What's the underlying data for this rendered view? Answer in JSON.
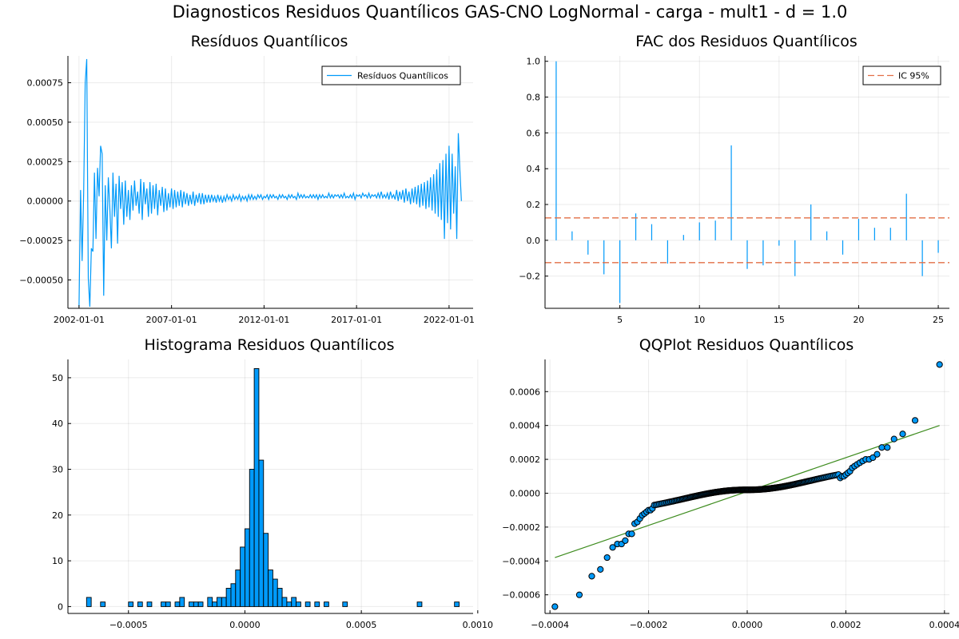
{
  "figure": {
    "suptitle": "Diagnosticos Residuos  Quantílicos GAS-CNO LogNormal - carga - mult1 - d = 1.0"
  },
  "colors": {
    "series": "#009AFA",
    "ci": "#E26F46",
    "qqline": "#3E8C1F",
    "marker_edge": "#000000"
  },
  "chart_data": [
    {
      "id": "residuals",
      "type": "line",
      "title": "Resíduos  Quantílicos",
      "legend": [
        "Resíduos Quantílicos"
      ],
      "legend_position": "top-right",
      "grid": true,
      "x_tick_labels": [
        "2002-01-01",
        "2007-01-01",
        "2012-01-01",
        "2017-01-01",
        "2022-01-01"
      ],
      "x_ticks_year": [
        2002,
        2007,
        2012,
        2017,
        2022
      ],
      "xlim_year": [
        2001.4,
        2023.3
      ],
      "y_ticks": [
        -0.0005,
        -0.00025,
        0.0,
        0.00025,
        0.0005,
        0.00075
      ],
      "y_tick_labels": [
        "−0.00050",
        "−0.00025",
        "0.00000",
        "0.00025",
        "0.00050",
        "0.00075"
      ],
      "ylim": [
        -0.00068,
        0.00092
      ],
      "series": [
        {
          "name": "Resíduos Quantílicos",
          "x_start_year": 2002.0,
          "x_step_year": 0.083333,
          "values": [
            -0.00067,
            7e-05,
            -0.00038,
            5e-05,
            0.00075,
            0.0009,
            -0.00049,
            -0.00067,
            -0.0003,
            -0.00032,
            0.00018,
            -0.00024,
            0.00021,
            3e-05,
            0.00035,
            0.0003,
            -0.0006,
            0.0001,
            -0.00025,
            0.00015,
            -5e-05,
            -0.0003,
            0.00018,
            -0.0001,
            0.00011,
            -0.00027,
            0.00016,
            -5e-05,
            0.00012,
            -0.00015,
            0.00013,
            -0.0001,
            7e-05,
            -0.00012,
            0.0001,
            -6e-05,
            0.00013,
            -3e-05,
            6e-05,
            -8e-05,
            0.00014,
            -0.00012,
            0.00012,
            -2e-05,
            8e-05,
            -0.0001,
            0.00012,
            -8e-05,
            0.0001,
            -5e-05,
            0.00011,
            -9e-05,
            7e-05,
            -3e-05,
            9e-05,
            -7e-05,
            8e-05,
            -6e-05,
            5e-05,
            -4e-05,
            8e-05,
            -5e-05,
            7e-05,
            -4e-05,
            6e-05,
            -3e-05,
            7e-05,
            -4e-05,
            6e-05,
            -2e-05,
            5e-05,
            -3e-05,
            4e-05,
            -2e-05,
            6e-05,
            -3e-05,
            4e-05,
            -1e-05,
            5e-05,
            -2e-05,
            5e-05,
            -2e-05,
            4e-05,
            -1e-05,
            4e-05,
            -1e-05,
            4e-05,
            0.0,
            3e-05,
            -1e-05,
            4e-05,
            0.0,
            3e-05,
            -1e-05,
            3e-05,
            0.0,
            4e-05,
            1e-05,
            3e-05,
            0.0,
            4e-05,
            1e-05,
            3e-05,
            1e-05,
            4e-05,
            0.0,
            3e-05,
            1e-05,
            3e-05,
            0.0,
            4e-05,
            1e-05,
            4e-05,
            1e-05,
            3e-05,
            1e-05,
            4e-05,
            2e-05,
            4e-05,
            1e-05,
            3e-05,
            2e-05,
            4e-05,
            1e-05,
            4e-05,
            2e-05,
            4e-05,
            2e-05,
            3e-05,
            1e-05,
            4e-05,
            2e-05,
            4e-05,
            2e-05,
            3e-05,
            1e-05,
            4e-05,
            2e-05,
            4e-05,
            2e-05,
            3e-05,
            1e-05,
            5e-05,
            2e-05,
            4e-05,
            2e-05,
            4e-05,
            2e-05,
            3e-05,
            2e-05,
            4e-05,
            2e-05,
            4e-05,
            2e-05,
            4e-05,
            1e-05,
            4e-05,
            2e-05,
            4e-05,
            2e-05,
            3e-05,
            2e-05,
            5e-05,
            2e-05,
            4e-05,
            2e-05,
            4e-05,
            3e-05,
            4e-05,
            2e-05,
            4e-05,
            2e-05,
            5e-05,
            2e-05,
            3e-05,
            2e-05,
            4e-05,
            2e-05,
            5e-05,
            1e-05,
            4e-05,
            3e-05,
            4e-05,
            2e-05,
            5e-05,
            3e-05,
            4e-05,
            2e-05,
            5e-05,
            2e-05,
            4e-05,
            3e-05,
            4e-05,
            2e-05,
            5e-05,
            2e-05,
            6e-05,
            2e-05,
            4e-05,
            2e-05,
            5e-05,
            1e-05,
            6e-05,
            2e-05,
            4e-05,
            1e-05,
            7e-05,
            0.0,
            6e-05,
            1e-05,
            7e-05,
            -1e-05,
            8e-05,
            0.0,
            6e-05,
            -2e-05,
            8e-05,
            -1e-05,
            9e-05,
            -2e-05,
            0.0001,
            -4e-05,
            0.00011,
            -3e-05,
            0.00012,
            -5e-05,
            0.00013,
            -4e-05,
            0.00015,
            -6e-05,
            0.00017,
            -8e-05,
            0.0002,
            -0.0001,
            0.00024,
            -0.00012,
            0.00026,
            -0.00024,
            0.0003,
            -0.00014,
            0.00035,
            -0.00018,
            0.0003,
            -8e-05,
            0.00022,
            -0.00024,
            0.00043,
            0.0002,
            0.0
          ]
        }
      ]
    },
    {
      "id": "acf",
      "type": "bar",
      "title": "FAC dos Residuos Quantílicos",
      "legend": [
        "IC 95%"
      ],
      "legend_position": "top-right",
      "grid": true,
      "lags": [
        1,
        2,
        3,
        4,
        5,
        6,
        7,
        8,
        9,
        10,
        11,
        12,
        13,
        14,
        15,
        16,
        17,
        18,
        19,
        20,
        21,
        22,
        23,
        24,
        25
      ],
      "values": [
        1.0,
        0.05,
        -0.08,
        -0.19,
        -0.35,
        0.15,
        0.09,
        -0.13,
        0.03,
        0.1,
        0.11,
        0.53,
        -0.16,
        -0.14,
        -0.03,
        -0.2,
        0.2,
        0.05,
        -0.08,
        0.12,
        0.07,
        0.07,
        0.26,
        -0.2,
        -0.07
      ],
      "ci": [
        0.125,
        -0.125
      ],
      "x_ticks": [
        5,
        10,
        15,
        20,
        25
      ],
      "x_tick_labels": [
        "5",
        "10",
        "15",
        "20",
        "25"
      ],
      "xlim": [
        0.3,
        25.7
      ],
      "y_ticks": [
        -0.2,
        0.0,
        0.2,
        0.4,
        0.6,
        0.8,
        1.0
      ],
      "y_tick_labels": [
        "−0.2",
        "0.0",
        "0.2",
        "0.4",
        "0.6",
        "0.8",
        "1.0"
      ],
      "ylim": [
        -0.38,
        1.03
      ]
    },
    {
      "id": "histogram",
      "type": "bar",
      "title": "Histograma Residuos Quantílicos",
      "grid": true,
      "bin_width": 2e-05,
      "bins": [
        [
          -0.00068,
          2
        ],
        [
          -0.00062,
          1
        ],
        [
          -0.0005,
          1
        ],
        [
          -0.00046,
          1
        ],
        [
          -0.00042,
          1
        ],
        [
          -0.00036,
          1
        ],
        [
          -0.00034,
          1
        ],
        [
          -0.0003,
          1
        ],
        [
          -0.00028,
          2
        ],
        [
          -0.00024,
          1
        ],
        [
          -0.00022,
          1
        ],
        [
          -0.0002,
          1
        ],
        [
          -0.00016,
          2
        ],
        [
          -0.00014,
          1
        ],
        [
          -0.00012,
          2
        ],
        [
          -0.0001,
          2
        ],
        [
          -8e-05,
          4
        ],
        [
          -6e-05,
          5
        ],
        [
          -4e-05,
          8
        ],
        [
          -2e-05,
          13
        ],
        [
          0.0,
          17
        ],
        [
          2e-05,
          30
        ],
        [
          4e-05,
          52
        ],
        [
          6e-05,
          32
        ],
        [
          8e-05,
          16
        ],
        [
          0.0001,
          8
        ],
        [
          0.00012,
          6
        ],
        [
          0.00014,
          4
        ],
        [
          0.00016,
          2
        ],
        [
          0.00018,
          1
        ],
        [
          0.0002,
          2
        ],
        [
          0.00022,
          1
        ],
        [
          0.00026,
          1
        ],
        [
          0.0003,
          1
        ],
        [
          0.00034,
          1
        ],
        [
          0.00042,
          1
        ],
        [
          0.00074,
          1
        ],
        [
          0.0009,
          1
        ]
      ],
      "x_ticks": [
        -0.0005,
        0.0,
        0.0005,
        0.001
      ],
      "x_tick_labels": [
        "−0.0005",
        "0.0000",
        "0.0005",
        "0.0010"
      ],
      "xlim": [
        -0.00076,
        0.00098
      ],
      "y_ticks": [
        0,
        10,
        20,
        30,
        40,
        50
      ],
      "y_tick_labels": [
        "0",
        "10",
        "20",
        "30",
        "40",
        "50"
      ],
      "ylim": [
        -1.5,
        54
      ]
    },
    {
      "id": "qqplot",
      "type": "scatter",
      "title": "QQPlot Residuos Quantílicos",
      "grid": true,
      "x_ticks": [
        -0.0004,
        -0.0002,
        0.0,
        0.0002,
        0.0004
      ],
      "x_tick_labels": [
        "−0.0004",
        "−0.0002",
        "0.0000",
        "0.0002",
        "0.0004"
      ],
      "xlim": [
        -0.00041,
        0.00041
      ],
      "y_ticks": [
        -0.0006,
        -0.0004,
        -0.0002,
        0.0,
        0.0002,
        0.0004,
        0.0006
      ],
      "y_tick_labels": [
        "−0.0006",
        "−0.0004",
        "−0.0002",
        "0.0000",
        "0.0002",
        "0.0004",
        "0.0006"
      ],
      "ylim": [
        -0.00071,
        0.00079
      ],
      "reference_line": [
        [
          -0.00039,
          -0.00038
        ],
        [
          0.00039,
          0.0004
        ]
      ],
      "n_points": 250,
      "x_range": [
        -0.00039,
        0.00039
      ],
      "central_values": [
        -9e-05,
        9e-05
      ],
      "lower_tail": [
        -0.00067,
        -0.0006,
        -0.00049,
        -0.00045,
        -0.00038,
        -0.00032,
        -0.0003,
        -0.0003,
        -0.00028,
        -0.00024,
        -0.00024,
        -0.00018,
        -0.00017,
        -0.00015,
        -0.00013,
        -0.00012,
        -0.00011,
        -0.0001,
        -0.0001,
        -9e-05
      ],
      "upper_tail": [
        9e-05,
        0.0001,
        0.0001,
        0.00011,
        0.00012,
        0.00013,
        0.00015,
        0.00016,
        0.00017,
        0.00018,
        0.00019,
        0.0002,
        0.0002,
        0.00021,
        0.00023,
        0.00027,
        0.00027,
        0.00032,
        0.00035,
        0.00043,
        0.00076
      ]
    }
  ]
}
